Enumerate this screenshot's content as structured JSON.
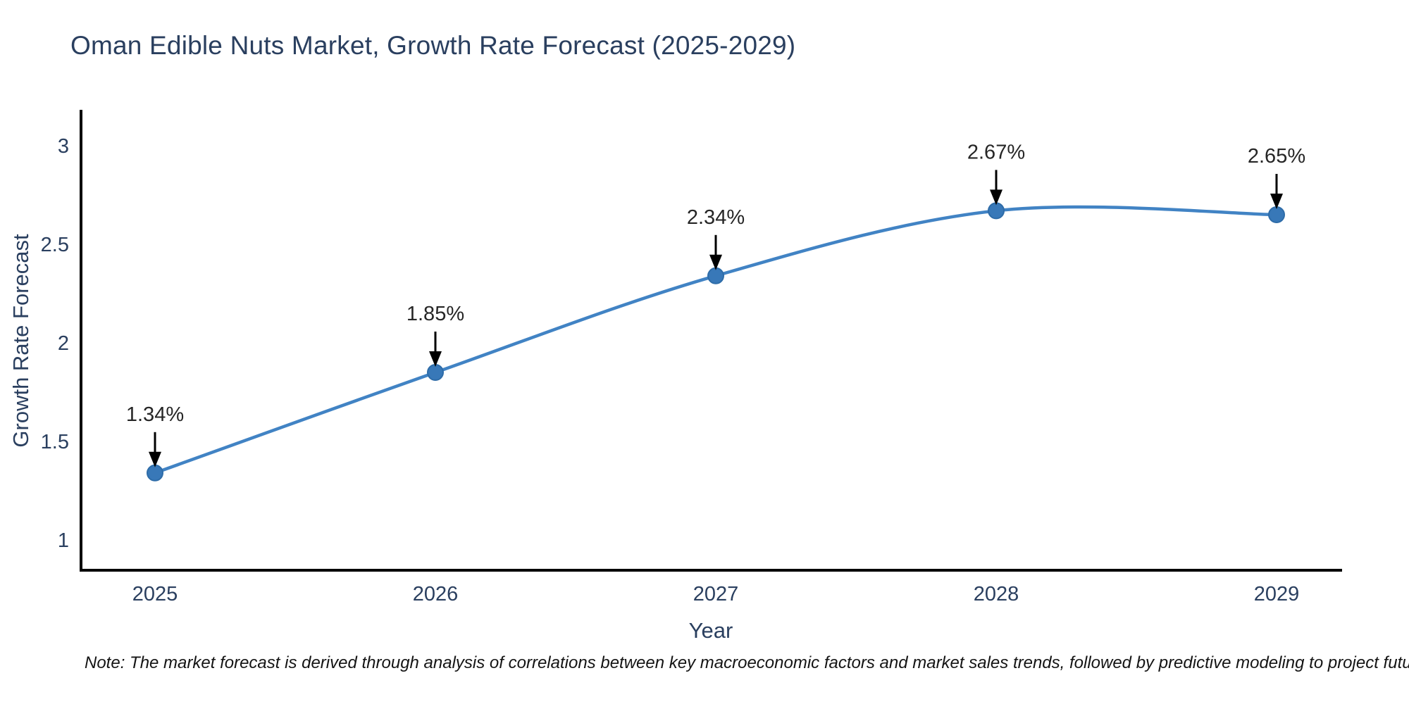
{
  "title": "Oman Edible Nuts Market, Growth Rate Forecast (2025-2029)",
  "note": "Note: The market forecast is derived through analysis of correlations between key macroeconomic factors and market sales trends, followed by predictive modeling to project future sales",
  "chart_data": {
    "type": "line",
    "title": "Oman Edible Nuts Market, Growth Rate Forecast (2025-2029)",
    "x": [
      2025,
      2026,
      2027,
      2028,
      2029
    ],
    "values": [
      1.34,
      1.85,
      2.34,
      2.67,
      2.65
    ],
    "point_labels": [
      "1.34%",
      "1.85%",
      "2.34%",
      "2.67%",
      "2.65%"
    ],
    "xlabel": "Year",
    "ylabel": "Growth Rate Forecast",
    "yticks": [
      1,
      1.5,
      2,
      2.5,
      3
    ],
    "ylim": [
      0.85,
      3.15
    ],
    "grid": false,
    "legend": "none",
    "curve": "spline",
    "line_color": "#4183c4",
    "marker_color": "#3878b8",
    "marker_edge_color": "#2e6ca8",
    "axis_color": "#000000",
    "text_color": "#2a3f5f",
    "annotation_text_color": "#262626",
    "annotation_arrow_color": "#000000"
  }
}
